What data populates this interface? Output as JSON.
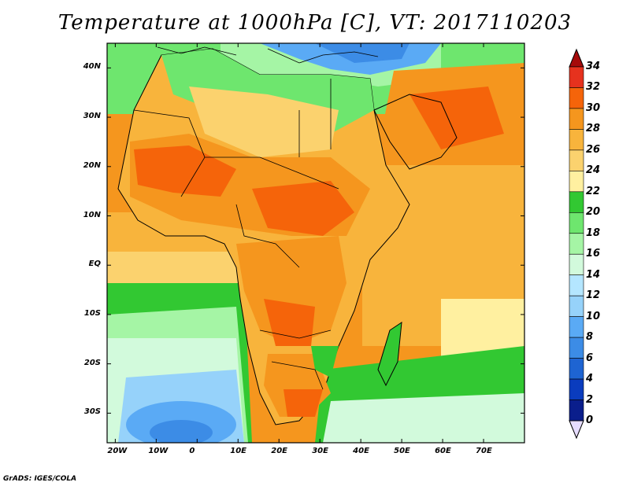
{
  "title": "Temperature at 1000hPa [C], VT: 2017110203",
  "credit": "GrADS: IGES/COLA",
  "map": {
    "lon_range": [
      -22,
      80
    ],
    "lat_range": [
      -36,
      45
    ],
    "lon_ticks": [
      {
        "value": -20,
        "label": "20W"
      },
      {
        "value": -10,
        "label": "10W"
      },
      {
        "value": 0,
        "label": "0"
      },
      {
        "value": 10,
        "label": "10E"
      },
      {
        "value": 20,
        "label": "20E"
      },
      {
        "value": 30,
        "label": "30E"
      },
      {
        "value": 40,
        "label": "40E"
      },
      {
        "value": 50,
        "label": "50E"
      },
      {
        "value": 60,
        "label": "60E"
      },
      {
        "value": 70,
        "label": "70E"
      }
    ],
    "lat_ticks": [
      {
        "value": 40,
        "label": "40N"
      },
      {
        "value": 30,
        "label": "30N"
      },
      {
        "value": 20,
        "label": "20N"
      },
      {
        "value": 10,
        "label": "10N"
      },
      {
        "value": 0,
        "label": "EQ"
      },
      {
        "value": -10,
        "label": "10S"
      },
      {
        "value": -20,
        "label": "20S"
      },
      {
        "value": -30,
        "label": "30S"
      }
    ]
  },
  "colorbar": {
    "levels": [
      "34",
      "32",
      "30",
      "28",
      "26",
      "24",
      "22",
      "20",
      "18",
      "16",
      "14",
      "12",
      "10",
      "8",
      "6",
      "4",
      "2",
      "0"
    ],
    "colors": [
      "#a50a0a",
      "#e6321e",
      "#f5640a",
      "#f5961e",
      "#f8b43c",
      "#fbd26e",
      "#fff0a0",
      "#32c832",
      "#6ee66e",
      "#a5f5a5",
      "#d2fadc",
      "#b4e6ff",
      "#96d2fa",
      "#5aaaf5",
      "#3c8ce6",
      "#1e64d2",
      "#0a3cbe",
      "#0a1e8c",
      "#e6dcff"
    ]
  }
}
